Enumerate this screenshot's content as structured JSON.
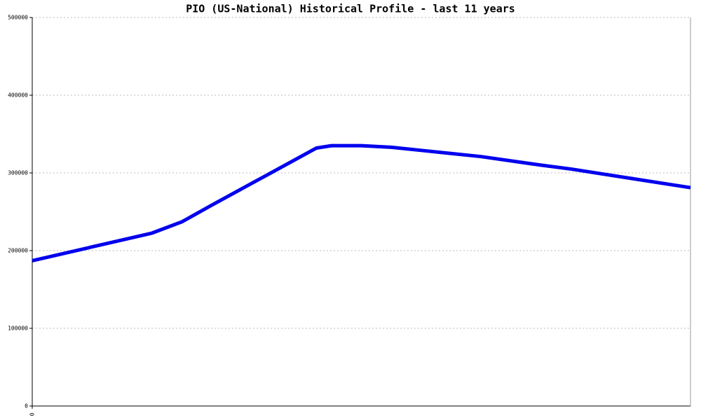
{
  "chart_data": {
    "type": "line",
    "title": "PIO (US-National) Historical Profile - last 11 years",
    "x": [
      0,
      2,
      2.5,
      3,
      3.75,
      4.75,
      5,
      5.5,
      6,
      6.5,
      7.5,
      8.5,
      9,
      10,
      11
    ],
    "series": [
      {
        "name": "PIO",
        "color": "#0000ee",
        "values": [
          187000,
          222500,
          237000,
          258500,
          290000,
          332000,
          335000,
          335000,
          333000,
          329000,
          321000,
          310000,
          305000,
          293000,
          281000
        ]
      }
    ],
    "xlim": [
      0,
      11
    ],
    "xticks": [
      0
    ],
    "ylim": [
      0,
      500000
    ],
    "yticks": [
      0,
      100000,
      200000,
      300000,
      400000,
      500000
    ],
    "grid": true
  }
}
